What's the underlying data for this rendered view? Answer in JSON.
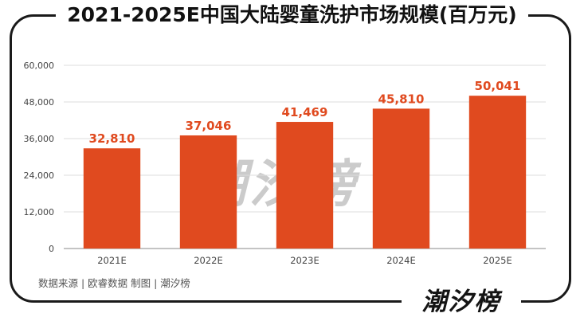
{
  "header": {
    "title": "2021-2025E中国大陆婴童洗护市场规模(百万元)"
  },
  "footer": {
    "source": "数据来源 | 欧睿数据   制图 | 潮汐榜",
    "brand": "潮汐榜"
  },
  "watermark": {
    "text": "潮汐榜"
  },
  "colors": {
    "bar": "#e04a1f",
    "label": "#e04a1f",
    "grid": "#dcdcdc",
    "axis": "#444444"
  },
  "chart_data": {
    "type": "bar",
    "title": "2021-2025E中国大陆婴童洗护市场规模(百万元)",
    "categories": [
      "2021E",
      "2022E",
      "2023E",
      "2024E",
      "2025E"
    ],
    "values": [
      32810,
      37046,
      41469,
      45810,
      50041
    ],
    "value_labels": [
      "32,810",
      "37,046",
      "41,469",
      "45,810",
      "50,041"
    ],
    "yticks": [
      0,
      12000,
      24000,
      36000,
      48000,
      60000
    ],
    "ytick_labels": [
      "0",
      "12,000",
      "24,000",
      "36,000",
      "48,000",
      "60,000"
    ],
    "ylim": [
      0,
      60000
    ],
    "xlabel": "",
    "ylabel": "",
    "grid": true,
    "legend": "none"
  }
}
